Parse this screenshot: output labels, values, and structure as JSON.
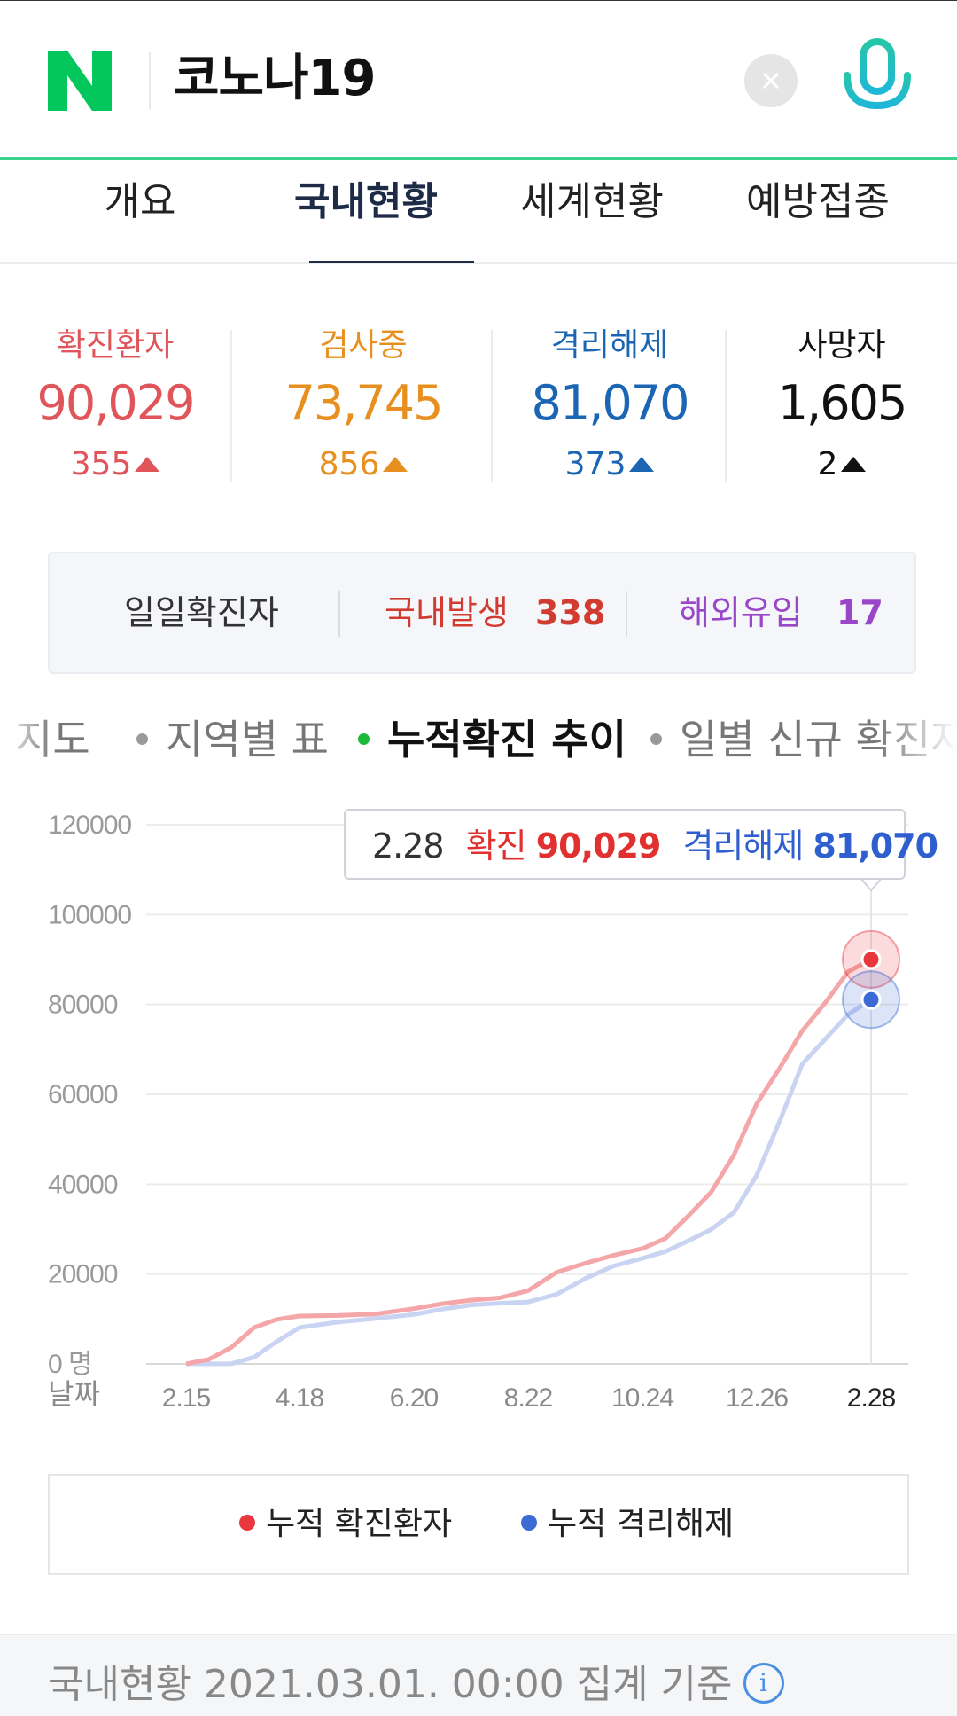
{
  "search": {
    "query": "코노나19"
  },
  "tabs": [
    {
      "label": "개요",
      "active": false
    },
    {
      "label": "국내현황",
      "active": true
    },
    {
      "label": "세계현황",
      "active": false
    },
    {
      "label": "예방접종",
      "active": false
    }
  ],
  "stats": [
    {
      "label": "확진환자",
      "value": "90,029",
      "delta": "355",
      "color": "#e0555a"
    },
    {
      "label": "검사중",
      "value": "73,745",
      "delta": "856",
      "color": "#e8901f"
    },
    {
      "label": "격리해제",
      "value": "81,070",
      "delta": "373",
      "color": "#1a66b5"
    },
    {
      "label": "사망자",
      "value": "1,605",
      "delta": "2",
      "color": "#111111"
    }
  ],
  "daily": {
    "title": "일일확진자",
    "domestic_label": "국내발생",
    "domestic_value": "338",
    "overseas_label": "해외유입",
    "overseas_value": "17"
  },
  "subtabs": [
    {
      "label": "지도",
      "active": false
    },
    {
      "label": "지역별 표",
      "active": false
    },
    {
      "label": "누적확진 추이",
      "active": true
    },
    {
      "label": "일별 신규 확진자",
      "active": false
    }
  ],
  "tooltip": {
    "date": "2.28",
    "confirmed_label": "확진",
    "confirmed_value": "90,029",
    "released_label": "격리해제",
    "released_value": "81,070"
  },
  "chart_data": {
    "type": "line",
    "xlabel": "날짜",
    "y_unit": "명",
    "ylim": [
      0,
      120000
    ],
    "y_ticks": [
      0,
      20000,
      40000,
      60000,
      80000,
      100000,
      120000
    ],
    "x_ticks": [
      "2.15",
      "4.18",
      "6.20",
      "8.22",
      "10.24",
      "12.26",
      "2.28"
    ],
    "grid": true,
    "x": [
      "2.15",
      "2.22",
      "3.01",
      "3.15",
      "4.01",
      "4.18",
      "5.01",
      "5.20",
      "6.20",
      "7.10",
      "7.30",
      "8.10",
      "8.22",
      "9.01",
      "9.15",
      "10.01",
      "10.24",
      "11.10",
      "11.25",
      "12.05",
      "12.15",
      "12.26",
      "1.05",
      "1.20",
      "2.05",
      "2.20",
      "2.28"
    ],
    "series": [
      {
        "name": "누적 확진환자",
        "color": "#e8383d",
        "line_color": "#f4a6a8",
        "values": [
          29,
          1000,
          3700,
          8100,
          9900,
          10650,
          10770,
          11120,
          12300,
          13400,
          14200,
          14700,
          16300,
          20400,
          22400,
          24200,
          25700,
          27900,
          32900,
          38200,
          46500,
          57900,
          65800,
          74200,
          80400,
          87300,
          90029
        ]
      },
      {
        "name": "누적 격리해제",
        "color": "#3c6bd6",
        "line_color": "#c9d3f2",
        "values": [
          10,
          20,
          30,
          1500,
          5000,
          8100,
          9300,
          10100,
          11000,
          12200,
          13100,
          13500,
          13800,
          15500,
          19000,
          21800,
          23500,
          25000,
          27400,
          29900,
          33700,
          42000,
          54000,
          66800,
          72300,
          77800,
          81070
        ]
      }
    ]
  },
  "legend": [
    {
      "label": "누적 확진환자",
      "color": "#e8383d"
    },
    {
      "label": "누적 격리해제",
      "color": "#3c6bd6"
    }
  ],
  "footer": {
    "text": "국내현황 2021.03.01. 00:00 집계 기준",
    "info": "i"
  }
}
